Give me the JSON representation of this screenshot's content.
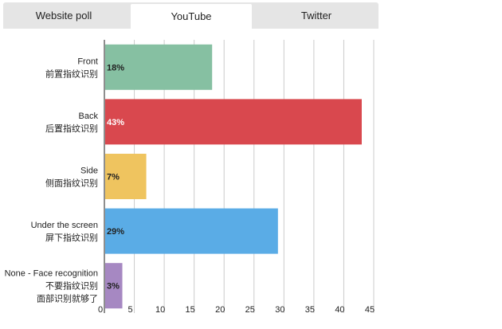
{
  "tabs": [
    {
      "label": "Website poll",
      "active": false
    },
    {
      "label": "YouTube",
      "active": true
    },
    {
      "label": "Twitter",
      "active": false
    }
  ],
  "chart_data": {
    "type": "bar",
    "orientation": "horizontal",
    "xlim": [
      0,
      45
    ],
    "x_ticks": [
      0,
      5,
      10,
      15,
      20,
      25,
      30,
      35,
      40,
      45
    ],
    "grid": true,
    "categories": [
      {
        "lines": [
          "Front",
          "前置指纹识别"
        ],
        "value": 18,
        "label": "18%",
        "color": "#86c0a2",
        "label_color": "#222222"
      },
      {
        "lines": [
          "Back",
          "后置指纹识别"
        ],
        "value": 43,
        "label": "43%",
        "color": "#d9484e",
        "label_color": "#ffffff"
      },
      {
        "lines": [
          "Side",
          "侧面指纹识别"
        ],
        "value": 7,
        "label": "7%",
        "color": "#efc45f",
        "label_color": "#222222"
      },
      {
        "lines": [
          "Under the screen",
          "屏下指纹识别"
        ],
        "value": 29,
        "label": "29%",
        "color": "#5aace6",
        "label_color": "#222222"
      },
      {
        "lines": [
          "None - Face recognition",
          "不要指纹识别",
          "面部识别就够了"
        ],
        "value": 3,
        "label": "3%",
        "color": "#a688c2",
        "label_color": "#222222"
      }
    ]
  }
}
